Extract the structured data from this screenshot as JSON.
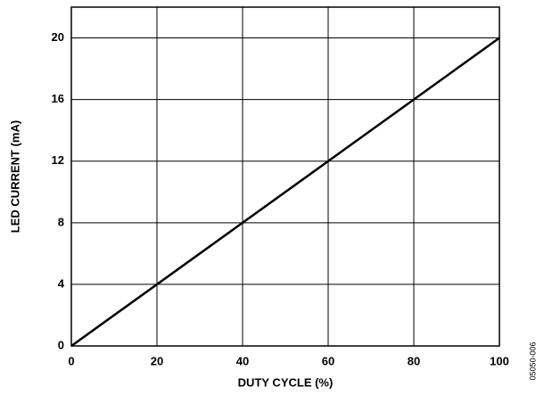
{
  "chart_data": {
    "type": "line",
    "x_label": "DUTY CYCLE (%)",
    "y_label": "LED CURRENT (mA)",
    "annotation": "05050-006",
    "x": [
      0,
      100
    ],
    "series": [
      {
        "name": null,
        "color": "#000000",
        "values": [
          0,
          20
        ]
      }
    ],
    "xlim": [
      0,
      100
    ],
    "xticks": [
      0,
      20,
      40,
      60,
      80,
      100
    ],
    "ylim": [
      0,
      22
    ],
    "yticks": [
      0,
      4,
      8,
      12,
      16,
      20
    ],
    "grid": true
  }
}
